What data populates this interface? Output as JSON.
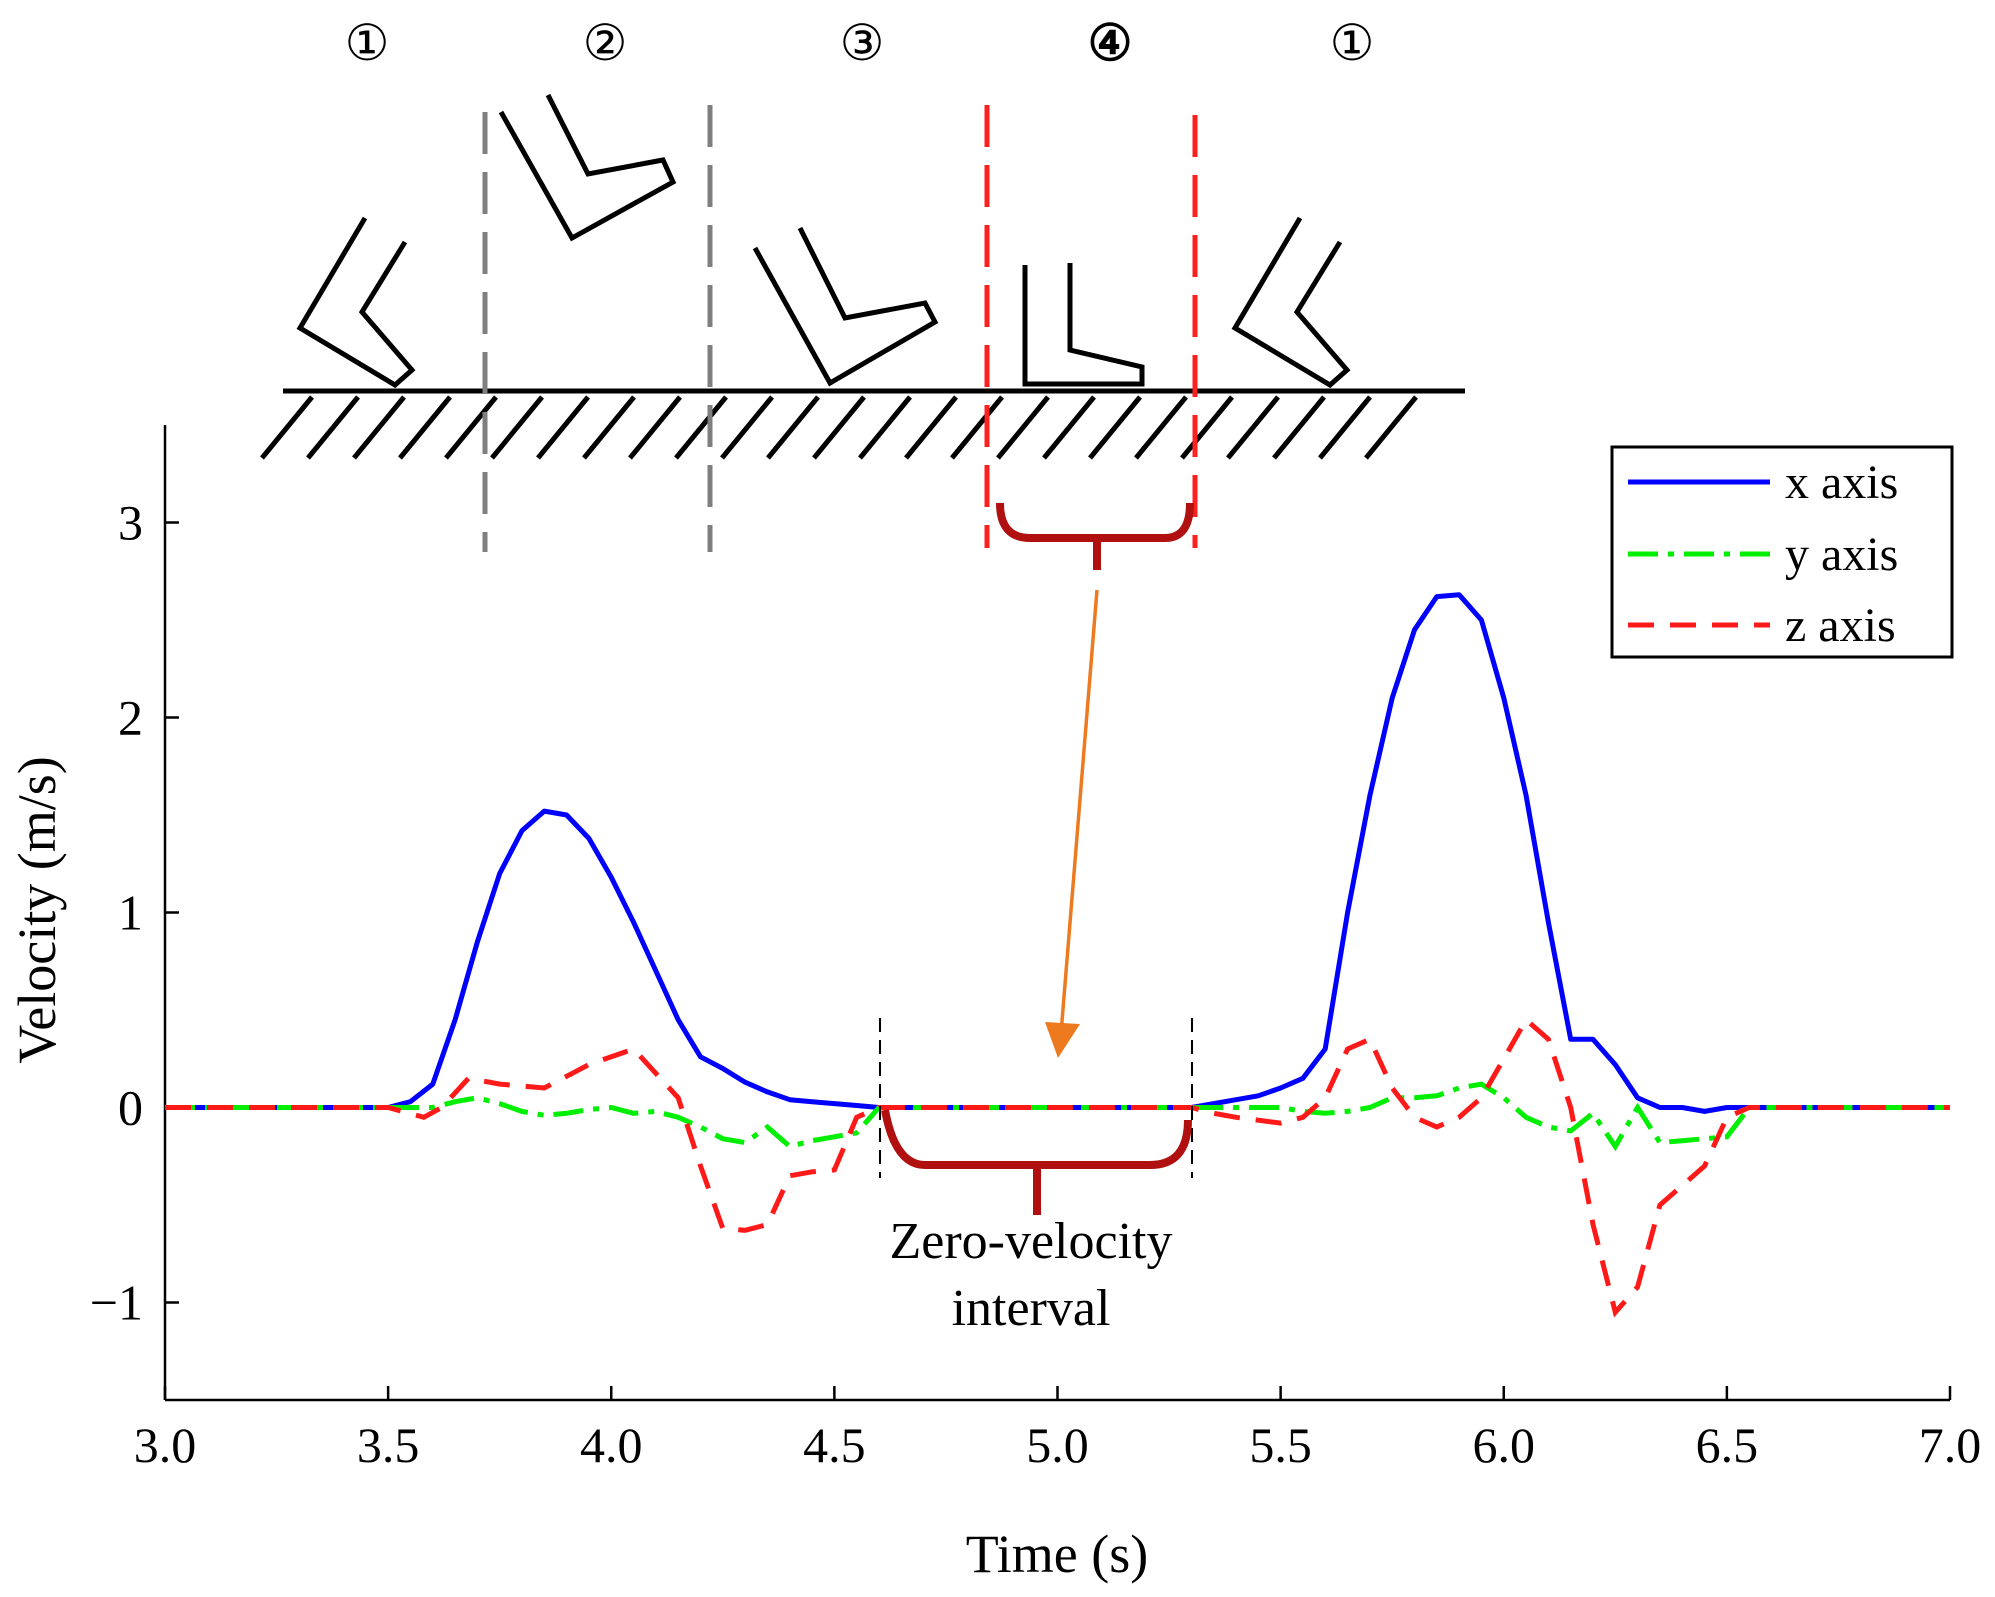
{
  "chart_data": {
    "type": "line",
    "xlabel": "Time (s)",
    "ylabel": "Velocity (m/s)",
    "xlim": [
      3.0,
      7.0
    ],
    "ylim": [
      -1.5,
      3.5
    ],
    "xticks": [
      3.0,
      3.5,
      4.0,
      4.5,
      5.0,
      5.5,
      6.0,
      6.5,
      7.0
    ],
    "xtick_labels": [
      "3.0",
      "3.5",
      "4.0",
      "4.5",
      "5.0",
      "5.5",
      "6.0",
      "6.5",
      "7.0"
    ],
    "yticks": [
      -1,
      0,
      1,
      2,
      3
    ],
    "ytick_labels": [
      "−1",
      "0",
      "1",
      "2",
      "3"
    ],
    "legend_position": "top-right",
    "grid": false,
    "series": [
      {
        "name": "x axis",
        "style": "solid",
        "color": "#0000ff",
        "x": [
          3.0,
          3.5,
          3.55,
          3.6,
          3.65,
          3.7,
          3.75,
          3.8,
          3.85,
          3.9,
          3.95,
          4.0,
          4.05,
          4.1,
          4.15,
          4.2,
          4.25,
          4.3,
          4.35,
          4.4,
          4.45,
          4.5,
          4.55,
          4.6,
          5.3,
          5.35,
          5.4,
          5.45,
          5.5,
          5.55,
          5.6,
          5.65,
          5.7,
          5.75,
          5.8,
          5.85,
          5.9,
          5.95,
          6.0,
          6.05,
          6.1,
          6.15,
          6.2,
          6.25,
          6.3,
          6.35,
          6.4,
          6.45,
          6.5,
          6.55,
          7.0
        ],
        "y": [
          0,
          0,
          0.03,
          0.12,
          0.45,
          0.85,
          1.2,
          1.42,
          1.52,
          1.5,
          1.38,
          1.18,
          0.95,
          0.7,
          0.45,
          0.26,
          0.2,
          0.13,
          0.08,
          0.04,
          0.03,
          0.02,
          0.01,
          0,
          0,
          0.02,
          0.04,
          0.06,
          0.1,
          0.15,
          0.3,
          1.0,
          1.6,
          2.1,
          2.45,
          2.62,
          2.63,
          2.5,
          2.1,
          1.6,
          0.95,
          0.35,
          0.35,
          0.22,
          0.05,
          0,
          0,
          -0.02,
          0,
          0,
          0
        ]
      },
      {
        "name": "y axis",
        "style": "dashdot",
        "color": "#00ee00",
        "x": [
          3.0,
          3.5,
          3.6,
          3.65,
          3.7,
          3.75,
          3.8,
          3.85,
          3.9,
          3.95,
          4.0,
          4.05,
          4.1,
          4.15,
          4.2,
          4.25,
          4.3,
          4.35,
          4.4,
          4.45,
          4.5,
          4.55,
          4.6,
          5.3,
          5.4,
          5.5,
          5.55,
          5.6,
          5.65,
          5.7,
          5.75,
          5.8,
          5.85,
          5.9,
          5.95,
          6.0,
          6.05,
          6.1,
          6.15,
          6.2,
          6.25,
          6.3,
          6.35,
          6.4,
          6.45,
          6.5,
          6.55,
          7.0
        ],
        "y": [
          0,
          0,
          0.0,
          0.03,
          0.05,
          0.02,
          -0.02,
          -0.04,
          -0.03,
          -0.01,
          0.0,
          -0.03,
          -0.02,
          -0.05,
          -0.1,
          -0.16,
          -0.18,
          -0.1,
          -0.2,
          -0.17,
          -0.15,
          -0.13,
          0,
          0,
          0.0,
          0.0,
          -0.02,
          -0.03,
          -0.02,
          0.0,
          0.05,
          0.05,
          0.06,
          0.1,
          0.12,
          0.05,
          -0.05,
          -0.1,
          -0.12,
          -0.03,
          -0.2,
          0.0,
          -0.18,
          -0.17,
          -0.16,
          -0.15,
          0,
          0
        ]
      },
      {
        "name": "z axis",
        "style": "dashed",
        "color": "#ff1a1a",
        "x": [
          3.0,
          3.5,
          3.58,
          3.62,
          3.68,
          3.75,
          3.85,
          3.95,
          4.05,
          4.15,
          4.2,
          4.25,
          4.3,
          4.35,
          4.4,
          4.45,
          4.5,
          4.55,
          4.6,
          5.3,
          5.35,
          5.4,
          5.5,
          5.55,
          5.6,
          5.65,
          5.7,
          5.75,
          5.8,
          5.85,
          5.9,
          5.95,
          6.0,
          6.05,
          6.1,
          6.15,
          6.2,
          6.25,
          6.3,
          6.35,
          6.4,
          6.45,
          6.5,
          6.55,
          7.0
        ],
        "y": [
          0,
          0,
          -0.05,
          0.0,
          0.15,
          0.12,
          0.1,
          0.22,
          0.3,
          0.05,
          -0.3,
          -0.62,
          -0.63,
          -0.6,
          -0.35,
          -0.33,
          -0.32,
          -0.05,
          0,
          0,
          -0.03,
          -0.05,
          -0.08,
          -0.05,
          0.05,
          0.3,
          0.35,
          0.1,
          -0.05,
          -0.1,
          -0.05,
          0.05,
          0.25,
          0.45,
          0.35,
          0.0,
          -0.6,
          -1.05,
          -0.92,
          -0.5,
          -0.4,
          -0.3,
          -0.05,
          0,
          0
        ]
      }
    ],
    "phase_labels": [
      "①",
      "②",
      "③",
      "④",
      "①"
    ],
    "annotation": "Zero-velocity interval",
    "zero_velocity_interval": [
      4.6,
      5.3
    ],
    "phase_boundaries_s": [
      3.72,
      4.22
    ]
  },
  "annotation_text": {
    "line1": "Zero-velocity",
    "line2": "interval"
  },
  "colors": {
    "x_axis": "#0000ff",
    "y_axis": "#00ee00",
    "z_axis": "#ff1a1a",
    "bracket": "#b01010",
    "arrow": "#ee7a20",
    "phase_divider": "#7f7f7f",
    "zero_divider": "#ff2020"
  }
}
